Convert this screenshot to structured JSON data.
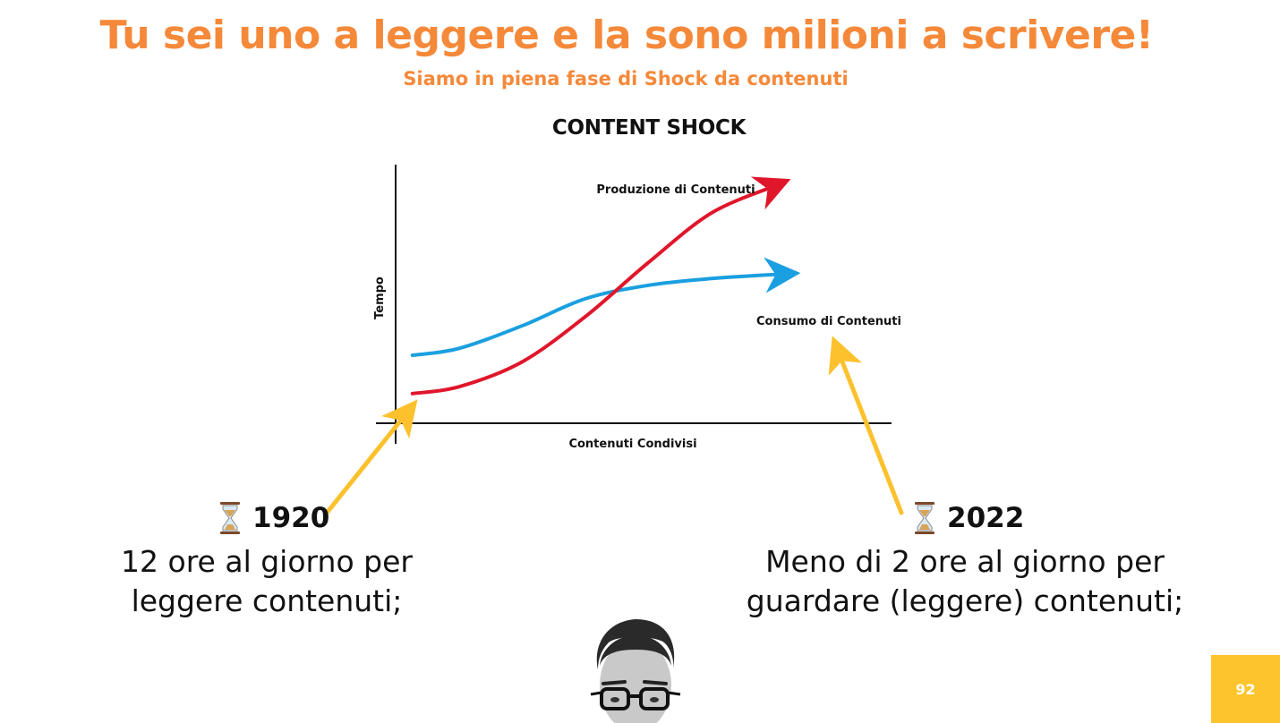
{
  "slide": {
    "title": "Tu sei uno a leggere e la sono milioni a scrivere!",
    "subtitle": "Siamo in piena fase di Shock da contenuti",
    "page_number": "92"
  },
  "colors": {
    "title_orange": "#f5893a",
    "production_red": "#e0162b",
    "consumption_blue": "#1a9fe0",
    "pointer_yellow": "#fcc12d",
    "badge_yellow": "#fec42d"
  },
  "chart_data": {
    "type": "line",
    "title": "CONTENT SHOCK",
    "xlabel": "Contenuti Condivisi",
    "ylabel": "Tempo",
    "grid": false,
    "series": [
      {
        "name": "Produzione di Contenuti",
        "color": "#e0162b",
        "x": [
          0.04,
          0.15,
          0.3,
          0.45,
          0.6,
          0.75,
          0.9
        ],
        "y": [
          0.08,
          0.11,
          0.22,
          0.42,
          0.66,
          0.88,
          1.0
        ]
      },
      {
        "name": "Consumo di Contenuti",
        "color": "#1a9fe0",
        "x": [
          0.04,
          0.15,
          0.3,
          0.45,
          0.6,
          0.75,
          0.92
        ],
        "y": [
          0.25,
          0.28,
          0.38,
          0.5,
          0.56,
          0.59,
          0.61
        ]
      }
    ]
  },
  "timeline": {
    "left": {
      "icon": "hourglass-icon",
      "year": "1920",
      "line1": "12 ore al giorno per",
      "line2": "leggere contenuti;"
    },
    "right": {
      "icon": "hourglass-icon",
      "year": "2022",
      "line1": "Meno di 2 ore al giorno per",
      "line2": "guardare (leggere) contenuti;"
    }
  }
}
